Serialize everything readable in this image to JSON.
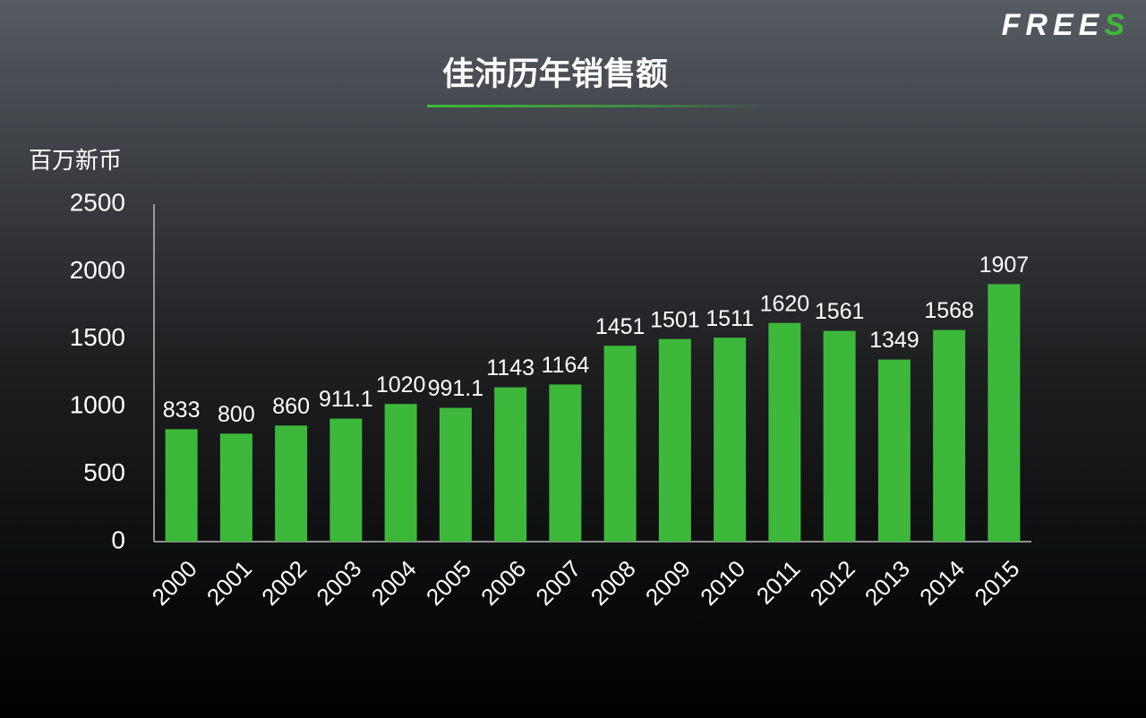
{
  "logo": "FREES",
  "chart_data": {
    "type": "bar",
    "title": "佳沛历年销售额",
    "y_label": "百万新币",
    "categories": [
      "2000",
      "2001",
      "2002",
      "2003",
      "2004",
      "2005",
      "2006",
      "2007",
      "2008",
      "2009",
      "2010",
      "2011",
      "2012",
      "2013",
      "2014",
      "2015"
    ],
    "values": [
      833,
      800,
      860,
      911.1,
      1020,
      991.1,
      1143,
      1164,
      1451,
      1501,
      1511,
      1620,
      1561,
      1349,
      1568,
      1907
    ],
    "color": "#3db83a",
    "ylim": [
      0,
      2500
    ],
    "yticks": [
      0,
      500,
      1000,
      1500,
      2000,
      2500
    ],
    "grid": false
  }
}
